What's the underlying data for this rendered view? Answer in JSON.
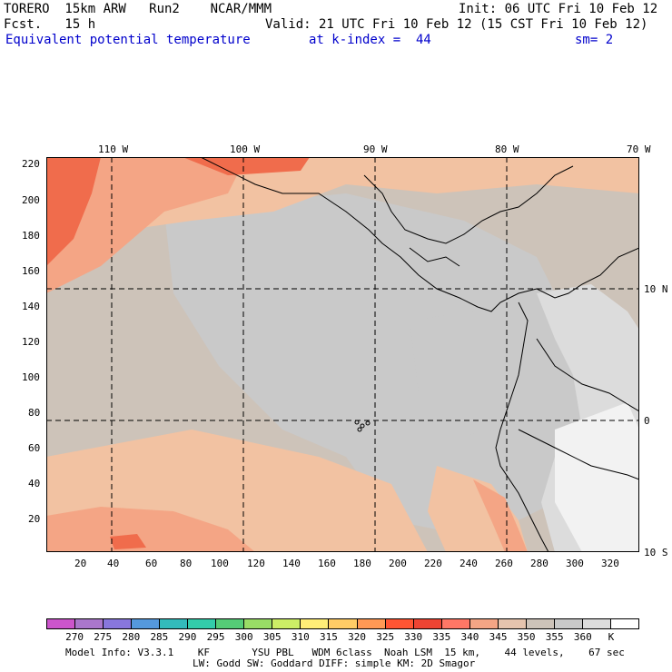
{
  "header": {
    "line1_left": "TORERO  15km ARW   Run2    NCAR/MMM",
    "line1_right": "Init: 06 UTC Fri 10 Feb 12",
    "line2_left": "Fcst.   15 h",
    "line2_right": "Valid: 21 UTC Fri 10 Feb 12 (15 CST Fri 10 Feb 12)",
    "field_name": "Equivalent potential temperature",
    "level": "at k-index =  44",
    "smooth": "sm= 2"
  },
  "map": {
    "top_lon_labels": [
      "110 W",
      "100 W",
      "90 W",
      "80 W",
      "70 W"
    ],
    "right_lat_labels": [
      "10 N",
      "0",
      "10 S"
    ],
    "left_y_ticks": [
      "220",
      "200",
      "180",
      "160",
      "140",
      "120",
      "100",
      "80",
      "60",
      "40",
      "20"
    ],
    "bottom_x_ticks": [
      "20",
      "40",
      "60",
      "80",
      "100",
      "120",
      "140",
      "160",
      "180",
      "200",
      "220",
      "240",
      "260",
      "280",
      "300",
      "320"
    ],
    "colors": {
      "background_main": "#cdc3b9",
      "gray_cool": "#c9c9c9",
      "peach": "#f2c2a2",
      "salmon": "#f4a585",
      "red_orange": "#f06c4c",
      "light_gray": "#e3e3e3",
      "white_ish": "#f2f2f2"
    }
  },
  "colorbar": {
    "colors": [
      "#cc55cc",
      "#aa77cc",
      "#8877dd",
      "#5599dd",
      "#33bbbb",
      "#33ccaa",
      "#55cc77",
      "#99dd66",
      "#ccee66",
      "#ffee77",
      "#ffcc66",
      "#ff9955",
      "#ff5533",
      "#ee4433",
      "#ff7766",
      "#f4a585",
      "#e6c4ae",
      "#cdc3b9",
      "#c9c9c9",
      "#dcdcdc",
      "#ffffff"
    ],
    "labels": [
      "270",
      "275",
      "280",
      "285",
      "290",
      "295",
      "300",
      "305",
      "310",
      "315",
      "320",
      "325",
      "330",
      "335",
      "340",
      "345",
      "350",
      "355",
      "360",
      "K"
    ]
  },
  "footer": {
    "line1": "Model Info: V3.3.1    KF       YSU PBL   WDM 6class  Noah LSM  15 km,    44 levels,    67 sec",
    "line2": "LW: Godd SW: Goddard DIFF: simple KM: 2D Smagor"
  }
}
